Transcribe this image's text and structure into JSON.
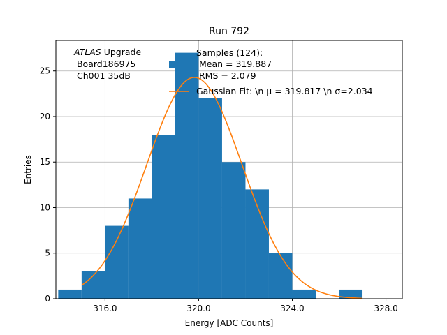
{
  "chart_data": {
    "type": "bar",
    "title": "Run 792",
    "xlabel": "Energy [ADC Counts]",
    "ylabel": "Entries",
    "xlim": [
      313.9,
      328.7
    ],
    "ylim": [
      0,
      28.35
    ],
    "grid": true,
    "xticks": [
      316,
      320,
      324,
      328
    ],
    "xtick_labels": [
      "316.0",
      "320.0",
      "324.0",
      "328.0"
    ],
    "yticks": [
      0,
      5,
      10,
      15,
      20,
      25
    ],
    "annotation": {
      "atlas": "ATLAS",
      "upgrade": " Upgrade",
      "board": " Board186975",
      "channel": " Ch001 35dB"
    },
    "histogram": {
      "name": "Samples (124):",
      "legend_lines": [
        "Samples (124):",
        " Mean = 319.887",
        " RMS = 2.079"
      ],
      "color": "#1f77b4",
      "bin_edges": [
        314,
        315,
        316,
        317,
        318,
        319,
        320,
        321,
        322,
        323,
        324,
        325,
        326,
        327
      ],
      "counts": [
        1,
        3,
        8,
        11,
        18,
        27,
        22,
        15,
        12,
        5,
        1,
        0,
        1
      ]
    },
    "fit": {
      "name": "Gaussian Fit: \\n μ = 319.817 \\n σ=2.034",
      "color": "#ff7f0e",
      "mu": 319.817,
      "sigma": 2.034,
      "amplitude": 24.3,
      "x_range": [
        315,
        327
      ]
    },
    "legend_loc": "upper-right"
  }
}
